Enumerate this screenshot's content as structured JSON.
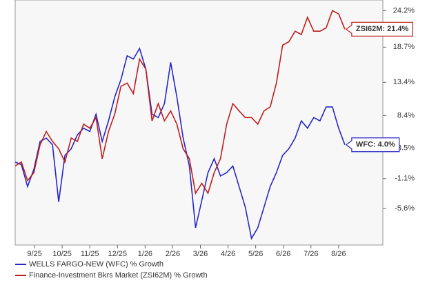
{
  "chart_data": {
    "type": "line",
    "x": [
      0.3,
      0.525,
      0.75,
      0.975,
      1.2,
      1.425,
      1.65,
      1.875,
      2.1,
      2.325,
      2.55,
      2.775,
      3.0,
      3.225,
      3.45,
      3.675,
      3.9,
      4.125,
      4.35,
      4.575,
      4.8,
      5.025,
      5.25,
      5.475,
      5.7,
      5.925,
      6.15,
      6.375,
      6.6,
      6.825,
      7.05,
      7.275,
      7.5,
      7.725,
      7.95,
      8.175,
      8.4,
      8.625,
      8.85,
      9.075,
      9.3,
      9.525,
      9.75,
      9.975,
      10.2,
      10.425,
      10.65,
      10.875,
      11.1,
      11.325,
      11.55,
      11.775,
      12.0,
      12.225
    ],
    "xlim": [
      0.3,
      13.6
    ],
    "xticks": [
      {
        "value": 1,
        "label": "9/25"
      },
      {
        "value": 2,
        "label": "10/25"
      },
      {
        "value": 3,
        "label": "11/25"
      },
      {
        "value": 4,
        "label": "12/25"
      },
      {
        "value": 5,
        "label": "1/26"
      },
      {
        "value": 6,
        "label": "2/26"
      },
      {
        "value": 7,
        "label": "3/26"
      },
      {
        "value": 8,
        "label": "4/26"
      },
      {
        "value": 9,
        "label": "5/26"
      },
      {
        "value": 10,
        "label": "6/26"
      },
      {
        "value": 11,
        "label": "7/26"
      },
      {
        "value": 12,
        "label": "8/26"
      }
    ],
    "ylim": [
      -11.1,
      25.8
    ],
    "yticks": [
      {
        "value": 24.2,
        "label": "24.2%"
      },
      {
        "value": 18.7,
        "label": "18.7%"
      },
      {
        "value": 13.4,
        "label": "13.4%"
      },
      {
        "value": 8.4,
        "label": "8.4%"
      },
      {
        "value": 3.5,
        "label": "3.5%"
      },
      {
        "value": -1.1,
        "label": "-1.1%"
      },
      {
        "value": -5.6,
        "label": "-5.6%"
      }
    ],
    "grid": false,
    "series": [
      {
        "name": "WELLS FARGO-NEW (WFC) % Growth",
        "color": "#2626c8",
        "end_label": "WFC: 4.0%",
        "values": [
          1.4,
          1.0,
          -2.3,
          0.3,
          4.5,
          5.0,
          4.0,
          -4.6,
          2.4,
          3.4,
          5.5,
          6.5,
          6.0,
          8.6,
          4.5,
          7.6,
          11.2,
          13.8,
          17.4,
          16.9,
          18.5,
          15.4,
          8.6,
          8.1,
          10.2,
          16.4,
          11.2,
          5.0,
          0.8,
          -8.5,
          -4.4,
          -0.2,
          1.9,
          -0.7,
          -0.2,
          0.8,
          -2.3,
          -5.4,
          -10.1,
          -8.5,
          -5.4,
          -2.3,
          -0.2,
          2.4,
          3.4,
          5.0,
          7.6,
          6.5,
          8.1,
          7.6,
          9.7,
          9.7,
          6.5,
          4.0
        ]
      },
      {
        "name": "Finance-Investment Bkrs Market (ZSI62M) % Growth",
        "color": "#c01c1c",
        "end_label": "ZSI62M: 21.4%",
        "values": [
          0.8,
          1.4,
          -1.4,
          -0.2,
          4.0,
          6.0,
          4.5,
          3.4,
          1.4,
          5.0,
          4.5,
          7.1,
          6.5,
          8.1,
          1.9,
          6.0,
          8.6,
          12.8,
          13.3,
          11.7,
          16.9,
          15.4,
          7.6,
          10.2,
          7.6,
          9.1,
          7.1,
          3.4,
          1.9,
          -3.3,
          -1.8,
          -3.3,
          -0.2,
          1.9,
          7.1,
          10.2,
          9.1,
          8.1,
          8.1,
          7.1,
          9.1,
          9.7,
          13.3,
          19.0,
          19.5,
          21.1,
          20.6,
          23.2,
          21.1,
          21.1,
          21.6,
          24.2,
          23.7,
          21.4
        ]
      }
    ]
  }
}
